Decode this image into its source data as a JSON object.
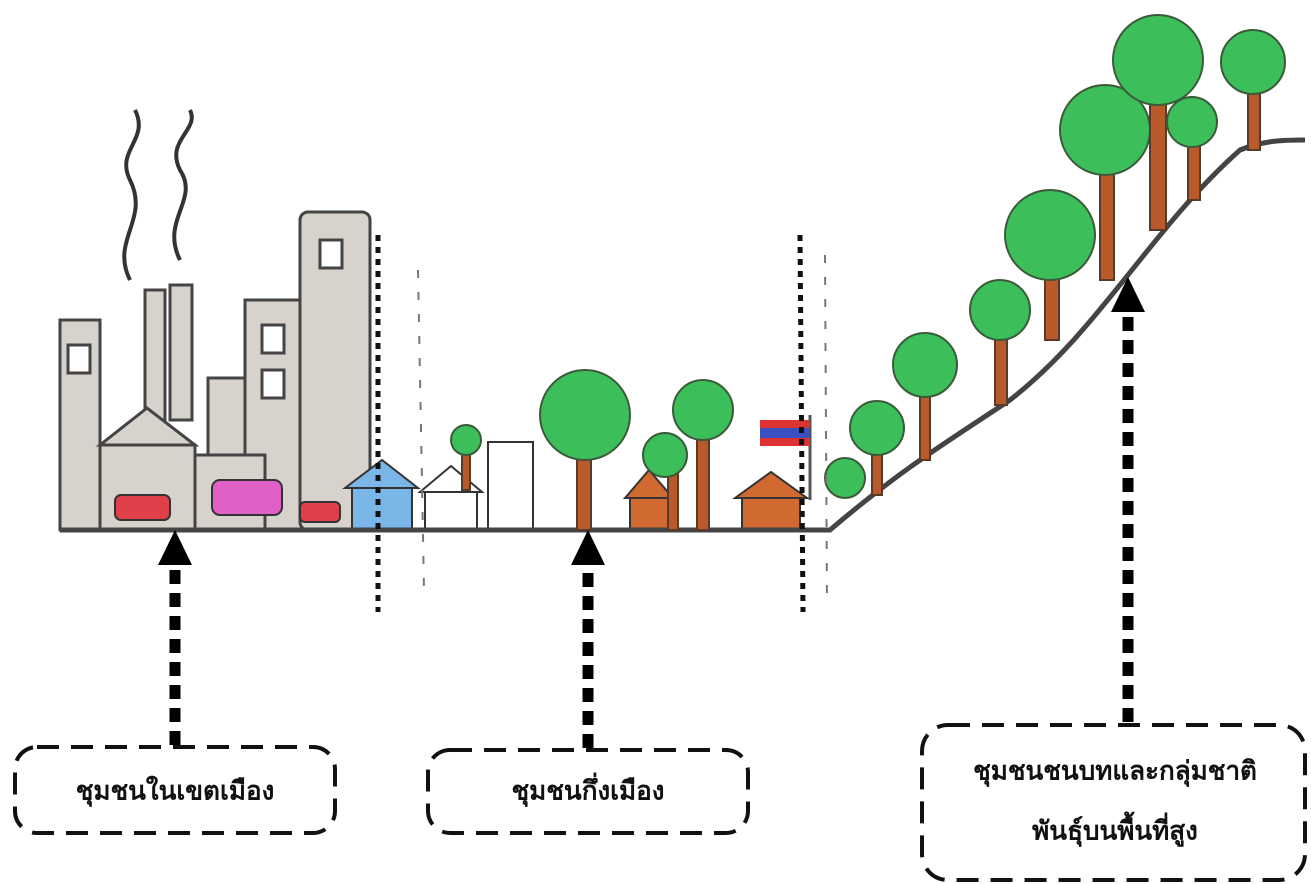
{
  "zones": [
    {
      "lines": [
        "ชุมชนในเขตเมือง"
      ]
    },
    {
      "lines": [
        "ชุมชนกึ่งเมือง"
      ]
    },
    {
      "lines": [
        "ชุมชนชนบทและกลุ่มชาติ",
        "พันธุ์บนพื้นที่สูง"
      ]
    }
  ]
}
